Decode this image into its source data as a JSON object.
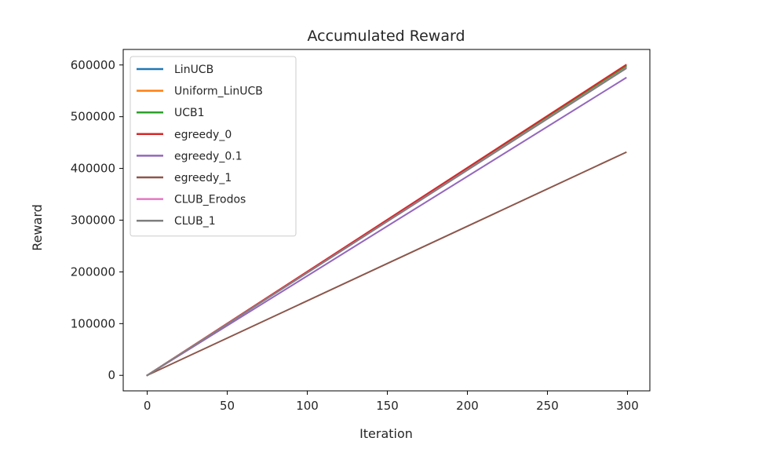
{
  "chart_data": {
    "type": "line",
    "title": "Accumulated Reward",
    "xlabel": "Iteration",
    "ylabel": "Reward",
    "xlim": [
      -15,
      314
    ],
    "ylim": [
      -30000,
      630000
    ],
    "xticks": [
      0,
      50,
      100,
      150,
      200,
      250,
      300
    ],
    "yticks": [
      0,
      100000,
      200000,
      300000,
      400000,
      500000,
      600000
    ],
    "grid": false,
    "legend_position": "top-left",
    "series": [
      {
        "name": "LinUCB",
        "color": "#1f77b4",
        "x": [
          0,
          299
        ],
        "y": [
          0,
          597000
        ]
      },
      {
        "name": "Uniform_LinUCB",
        "color": "#ff7f0e",
        "x": [
          0,
          299
        ],
        "y": [
          0,
          599000
        ]
      },
      {
        "name": "UCB1",
        "color": "#2ca02c",
        "x": [
          0,
          299
        ],
        "y": [
          0,
          596000
        ]
      },
      {
        "name": "egreedy_0",
        "color": "#d62728",
        "x": [
          0,
          299
        ],
        "y": [
          0,
          600000
        ]
      },
      {
        "name": "egreedy_0.1",
        "color": "#9467bd",
        "x": [
          0,
          299
        ],
        "y": [
          0,
          575000
        ]
      },
      {
        "name": "egreedy_1",
        "color": "#8c564b",
        "x": [
          0,
          299
        ],
        "y": [
          0,
          431000
        ]
      },
      {
        "name": "CLUB_Erodos",
        "color": "#e377c2",
        "x": [
          0,
          299
        ],
        "y": [
          0,
          594000
        ]
      },
      {
        "name": "CLUB_1",
        "color": "#7f7f7f",
        "x": [
          0,
          299
        ],
        "y": [
          0,
          593000
        ]
      }
    ]
  }
}
